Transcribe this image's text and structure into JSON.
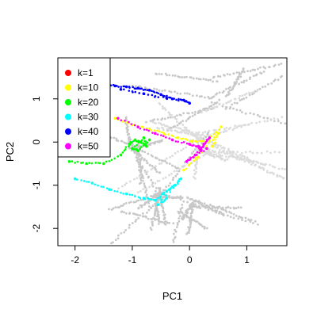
{
  "chart_data": {
    "type": "scatter",
    "xlabel": "PC1",
    "ylabel": "PC2",
    "xlim": [
      -2.3,
      1.7
    ],
    "ylim": [
      -2.4,
      1.95
    ],
    "xticks": [
      "-2",
      "-1",
      "0",
      "1"
    ],
    "xtick_values": [
      -2,
      -1,
      0,
      1
    ],
    "yticks": [
      "-2",
      "-1",
      "0",
      "1"
    ],
    "ytick_values": [
      -2,
      -1,
      0,
      1
    ],
    "legend": {
      "position": "top-left"
    },
    "background_color": "#c8c8c8",
    "series": [
      {
        "name": "k=1",
        "color": "#ff0000",
        "points": []
      },
      {
        "name": "k=10",
        "color": "#ffff00",
        "points": [
          [
            -1.3,
            0.55
          ],
          [
            -1.0,
            0.4
          ],
          [
            -0.7,
            0.3
          ],
          [
            -0.45,
            0.2
          ],
          [
            -0.2,
            0.1
          ],
          [
            0.05,
            0.02
          ],
          [
            0.3,
            0.0
          ],
          [
            0.55,
            0.35
          ],
          [
            0.15,
            -0.35
          ],
          [
            -0.1,
            -0.65
          ],
          [
            0.5,
            0.2
          ],
          [
            0.4,
            -0.1
          ]
        ]
      },
      {
        "name": "k=20",
        "color": "#00ff00",
        "points": [
          [
            -2.1,
            -0.45
          ],
          [
            -1.8,
            -0.5
          ],
          [
            -1.5,
            -0.5
          ],
          [
            -1.2,
            -0.3
          ],
          [
            -1.05,
            -0.05
          ],
          [
            -0.95,
            0.05
          ],
          [
            -0.85,
            0.0
          ],
          [
            -0.75,
            -0.1
          ],
          [
            -0.8,
            0.1
          ],
          [
            -1.0,
            -0.15
          ],
          [
            -0.9,
            -0.2
          ],
          [
            -0.7,
            0.05
          ]
        ]
      },
      {
        "name": "k=30",
        "color": "#00ffff",
        "points": [
          [
            -2.0,
            -0.85
          ],
          [
            -1.7,
            -0.95
          ],
          [
            -1.4,
            -1.1
          ],
          [
            -1.1,
            -1.2
          ],
          [
            -0.8,
            -1.3
          ],
          [
            -0.6,
            -1.35
          ],
          [
            -0.45,
            -1.2
          ],
          [
            -0.35,
            -1.1
          ],
          [
            -0.25,
            -1.0
          ],
          [
            -0.15,
            -0.85
          ],
          [
            -0.55,
            -1.45
          ],
          [
            -0.4,
            -1.3
          ]
        ]
      },
      {
        "name": "k=40",
        "color": "#0000ff",
        "points": [
          [
            -1.55,
            1.35
          ],
          [
            -1.3,
            1.3
          ],
          [
            -1.1,
            1.28
          ],
          [
            -0.9,
            1.25
          ],
          [
            -0.7,
            1.2
          ],
          [
            -0.5,
            1.1
          ],
          [
            -0.3,
            1.0
          ],
          [
            -0.1,
            0.97
          ],
          [
            0.0,
            0.9
          ],
          [
            -1.2,
            1.22
          ],
          [
            -0.8,
            1.12
          ],
          [
            -0.4,
            1.02
          ]
        ]
      },
      {
        "name": "k=50",
        "color": "#ff00ff",
        "points": [
          [
            -1.25,
            0.55
          ],
          [
            -0.9,
            0.35
          ],
          [
            -0.6,
            0.2
          ],
          [
            -0.3,
            0.05
          ],
          [
            0.0,
            -0.05
          ],
          [
            0.15,
            -0.1
          ],
          [
            0.2,
            -0.2
          ],
          [
            0.25,
            -0.05
          ],
          [
            0.35,
            0.1
          ],
          [
            0.1,
            -0.3
          ],
          [
            -0.05,
            -0.45
          ],
          [
            0.3,
            -0.15
          ]
        ]
      }
    ]
  }
}
